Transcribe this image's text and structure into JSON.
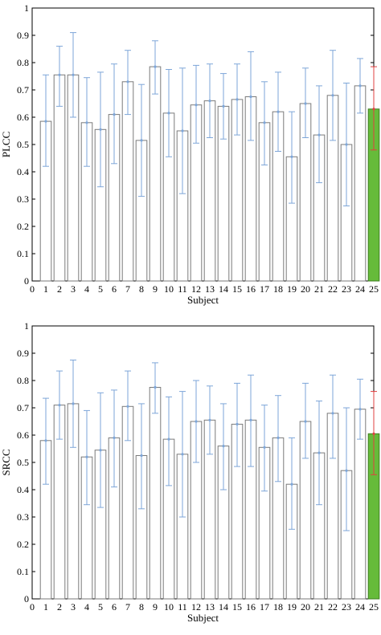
{
  "chart_data": [
    {
      "type": "bar",
      "xlabel": "Subject",
      "ylabel": "PLCC",
      "ylim": [
        0,
        1
      ],
      "xlim": [
        0,
        25
      ],
      "yticks": [
        "0",
        "0.1",
        "0.2",
        "0.3",
        "0.4",
        "0.5",
        "0.6",
        "0.7",
        "0.8",
        "0.9",
        "1"
      ],
      "xticks": [
        "0",
        "1",
        "2",
        "3",
        "4",
        "5",
        "6",
        "7",
        "8",
        "9",
        "10",
        "11",
        "12",
        "13",
        "14",
        "15",
        "16",
        "17",
        "18",
        "19",
        "20",
        "21",
        "22",
        "23",
        "24",
        "25"
      ],
      "categories": [
        "1",
        "2",
        "3",
        "4",
        "5",
        "6",
        "7",
        "8",
        "9",
        "10",
        "11",
        "12",
        "13",
        "14",
        "15",
        "16",
        "17",
        "18",
        "19",
        "20",
        "21",
        "22",
        "23",
        "24",
        "25"
      ],
      "values": [
        0.585,
        0.755,
        0.755,
        0.58,
        0.555,
        0.61,
        0.73,
        0.515,
        0.785,
        0.615,
        0.55,
        0.645,
        0.66,
        0.64,
        0.665,
        0.675,
        0.58,
        0.62,
        0.455,
        0.65,
        0.535,
        0.68,
        0.5,
        0.715,
        0.63
      ],
      "error_low": [
        0.42,
        0.64,
        0.6,
        0.42,
        0.345,
        0.43,
        0.61,
        0.31,
        0.685,
        0.455,
        0.32,
        0.505,
        0.525,
        0.52,
        0.535,
        0.515,
        0.425,
        0.475,
        0.285,
        0.525,
        0.36,
        0.515,
        0.275,
        0.615,
        0.48
      ],
      "error_high": [
        0.755,
        0.86,
        0.91,
        0.745,
        0.765,
        0.795,
        0.845,
        0.72,
        0.88,
        0.775,
        0.78,
        0.79,
        0.795,
        0.76,
        0.795,
        0.84,
        0.73,
        0.765,
        0.62,
        0.78,
        0.715,
        0.845,
        0.725,
        0.815,
        0.785
      ],
      "colors": {
        "bar_fill": "#ffffff",
        "bar_stroke": "#7a7a7a",
        "highlight_fill": "#66bb3a",
        "highlight_stroke": "#3f7f22",
        "error": "#7ea6d8",
        "highlight_error": "#e04040"
      }
    },
    {
      "type": "bar",
      "xlabel": "Subject",
      "ylabel": "SRCC",
      "ylim": [
        0,
        1
      ],
      "xlim": [
        0,
        25
      ],
      "yticks": [
        "0",
        "0.1",
        "0.2",
        "0.3",
        "0.4",
        "0.5",
        "0.6",
        "0.7",
        "0.8",
        "0.9",
        "1"
      ],
      "xticks": [
        "0",
        "1",
        "2",
        "3",
        "4",
        "5",
        "6",
        "7",
        "8",
        "9",
        "10",
        "11",
        "12",
        "13",
        "14",
        "15",
        "16",
        "17",
        "18",
        "19",
        "20",
        "21",
        "22",
        "23",
        "24",
        "25"
      ],
      "categories": [
        "1",
        "2",
        "3",
        "4",
        "5",
        "6",
        "7",
        "8",
        "9",
        "10",
        "11",
        "12",
        "13",
        "14",
        "15",
        "16",
        "17",
        "18",
        "19",
        "20",
        "21",
        "22",
        "23",
        "24",
        "25"
      ],
      "values": [
        0.58,
        0.71,
        0.715,
        0.52,
        0.545,
        0.59,
        0.705,
        0.525,
        0.775,
        0.585,
        0.53,
        0.65,
        0.655,
        0.56,
        0.64,
        0.655,
        0.555,
        0.59,
        0.42,
        0.65,
        0.535,
        0.68,
        0.47,
        0.695,
        0.605
      ],
      "error_low": [
        0.42,
        0.585,
        0.555,
        0.345,
        0.335,
        0.41,
        0.58,
        0.33,
        0.68,
        0.415,
        0.3,
        0.5,
        0.53,
        0.4,
        0.485,
        0.485,
        0.395,
        0.43,
        0.255,
        0.515,
        0.345,
        0.515,
        0.25,
        0.585,
        0.455
      ],
      "error_high": [
        0.735,
        0.835,
        0.875,
        0.69,
        0.755,
        0.765,
        0.835,
        0.715,
        0.865,
        0.74,
        0.76,
        0.8,
        0.78,
        0.715,
        0.79,
        0.82,
        0.71,
        0.745,
        0.59,
        0.79,
        0.725,
        0.82,
        0.7,
        0.805,
        0.76
      ],
      "colors": {
        "bar_fill": "#ffffff",
        "bar_stroke": "#7a7a7a",
        "highlight_fill": "#66bb3a",
        "highlight_stroke": "#3f7f22",
        "error": "#7ea6d8",
        "highlight_error": "#e04040"
      }
    }
  ]
}
